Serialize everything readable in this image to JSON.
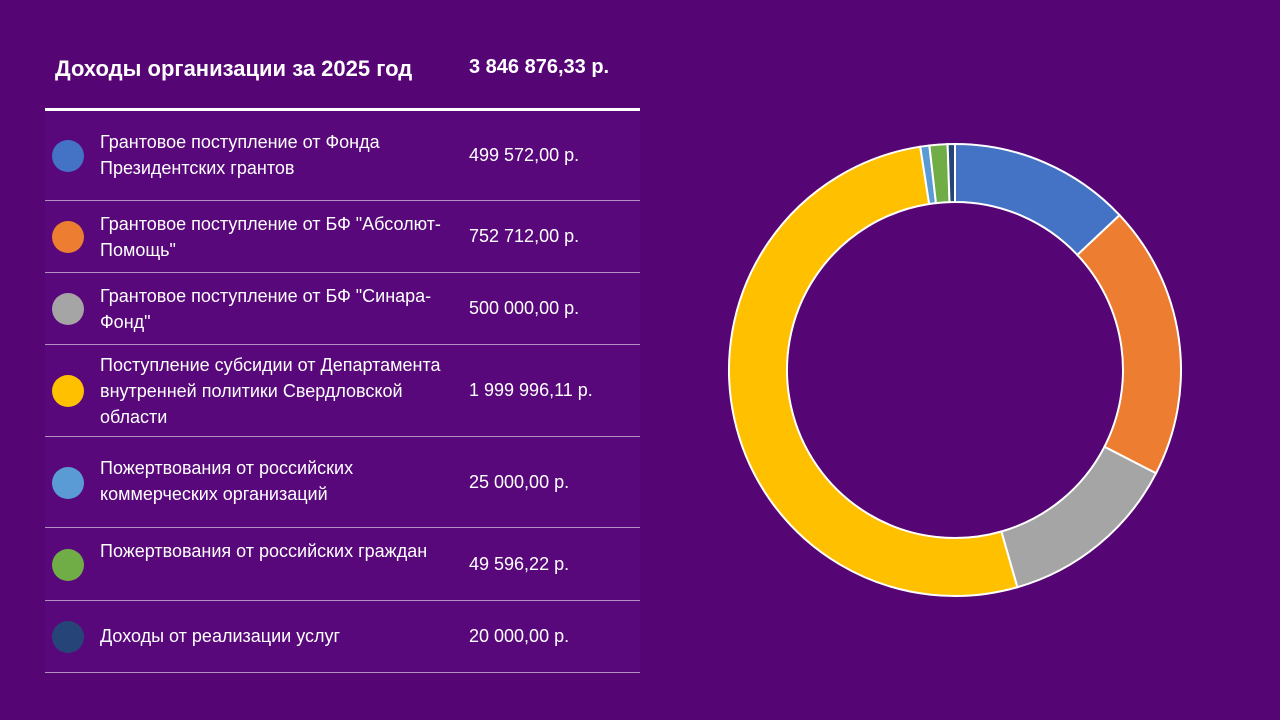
{
  "header": {
    "title": "Доходы организации за 2025 год",
    "total": "3 846 876,33 р."
  },
  "rows": [
    {
      "label": "Грантовое поступление от Фонда Президентских грантов",
      "amount": "499 572,00 р.",
      "color": "#4472C4"
    },
    {
      "label": "Грантовое поступление от БФ \"Абсолют-Помощь\"",
      "amount": "752 712,00 р.",
      "color": "#ED7D31"
    },
    {
      "label": "Грантовое поступление от  БФ \"Синара-Фонд\"",
      "amount": "500 000,00 р.",
      "color": "#A5A5A5"
    },
    {
      "label": "Поступление субсидии от Департамента внутренней политики Свердловской области",
      "amount": "1 999 996,11 р.",
      "color": "#FFC000"
    },
    {
      "label": "Пожертвования от российских коммерческих организаций",
      "amount": "25 000,00 р.",
      "color": "#5B9BD5"
    },
    {
      "label": "Пожертвования от российских граждан",
      "amount": "49 596,22 р.",
      "color": "#70AD47"
    },
    {
      "label": "Доходы от реализации услуг",
      "amount": "20 000,00  р.",
      "color": "#264478"
    }
  ],
  "chart_data": {
    "type": "pie",
    "variant": "donut",
    "categories": [
      "Грантовое поступление от Фонда Президентских грантов",
      "Грантовое поступление от БФ \"Абсолют-Помощь\"",
      "Грантовое поступление от  БФ \"Синара-Фонд\"",
      "Поступление субсидии от Департамента внутренней политики Свердловской области",
      "Пожертвования от российских коммерческих организаций",
      "Пожертвования от российских граждан",
      "Доходы от реализации услуг"
    ],
    "values": [
      499572.0,
      752712.0,
      500000.0,
      1999996.11,
      25000.0,
      49596.22,
      20000.0
    ],
    "colors": [
      "#4472C4",
      "#ED7D31",
      "#A5A5A5",
      "#FFC000",
      "#5B9BD5",
      "#70AD47",
      "#264478"
    ],
    "title": "",
    "legend": "left"
  }
}
